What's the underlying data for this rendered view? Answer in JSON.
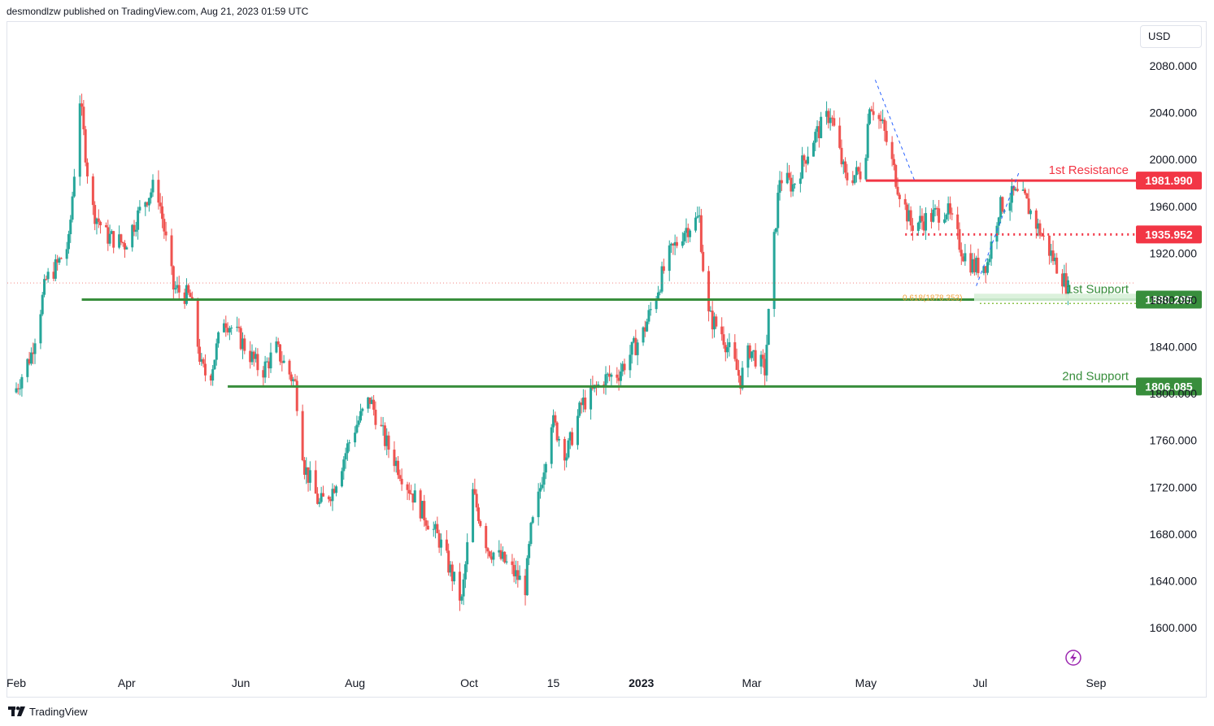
{
  "header": {
    "publisher": "desmondlzw published on TradingView.com, Aug 21, 2023 01:59 UTC"
  },
  "currency": "USD",
  "brand": {
    "name": "TradingView"
  },
  "colors": {
    "up": "#26a69a",
    "down": "#ef5350",
    "resistance": "#f23645",
    "support": "#388e3c",
    "fib": "#f2a33a",
    "trend": "#2962ff",
    "accent": "#9c27b0"
  },
  "chart_data": {
    "type": "candlestick",
    "instrument_currency": "USD",
    "y_axis": {
      "ticks": [
        "1600.000",
        "1640.000",
        "1680.000",
        "1720.000",
        "1760.000",
        "1800.000",
        "1840.000",
        "1880.000",
        "1920.000",
        "1960.000",
        "2000.000",
        "2040.000",
        "2080.000"
      ],
      "ylim": [
        1578,
        2098
      ]
    },
    "x_axis": {
      "ticks": [
        {
          "label": "Feb",
          "date": "2022-02-01"
        },
        {
          "label": "Apr",
          "date": "2022-04-01"
        },
        {
          "label": "Jun",
          "date": "2022-06-01"
        },
        {
          "label": "Aug",
          "date": "2022-08-01"
        },
        {
          "label": "Oct",
          "date": "2022-10-01"
        },
        {
          "label": "15",
          "date": "2022-11-15"
        },
        {
          "label": "2023",
          "date": "2023-01-01",
          "bold": true
        },
        {
          "label": "Mar",
          "date": "2023-03-01"
        },
        {
          "label": "May",
          "date": "2023-05-01"
        },
        {
          "label": "Jul",
          "date": "2023-07-01"
        },
        {
          "label": "Sep",
          "date": "2023-09-01"
        }
      ]
    },
    "levels": [
      {
        "name": "1st Resistance",
        "value": 1981.99,
        "label": "1981.990",
        "style": "solid",
        "color": "#f23645",
        "start_date": "2023-05-01"
      },
      {
        "name": "",
        "value": 1935.952,
        "label": "1935.952",
        "style": "dotted",
        "color": "#f23645",
        "start_date": "2023-05-22"
      },
      {
        "name": "1st Support",
        "value": 1880.295,
        "label": "1880.295",
        "style": "solid",
        "color": "#388e3c",
        "start_date": "2022-03-08"
      },
      {
        "name": "2nd Support",
        "value": 1806.085,
        "label": "1806.085",
        "style": "solid",
        "color": "#388e3c",
        "start_date": "2022-05-25"
      }
    ],
    "fib": {
      "label": "0.618(1878.353)",
      "value": 1878.353
    },
    "last_price": 1889.5,
    "series": [
      {
        "date": "2022-02-01",
        "close": 1801
      },
      {
        "date": "2022-02-10",
        "close": 1834
      },
      {
        "date": "2022-02-18",
        "close": 1897
      },
      {
        "date": "2022-02-24",
        "close": 1910
      },
      {
        "date": "2022-03-02",
        "close": 1928
      },
      {
        "date": "2022-03-08",
        "close": 2052
      },
      {
        "date": "2022-03-14",
        "close": 1960
      },
      {
        "date": "2022-03-22",
        "close": 1935
      },
      {
        "date": "2022-04-01",
        "close": 1928
      },
      {
        "date": "2022-04-12",
        "close": 1966
      },
      {
        "date": "2022-04-18",
        "close": 1980
      },
      {
        "date": "2022-04-27",
        "close": 1890
      },
      {
        "date": "2022-05-06",
        "close": 1882
      },
      {
        "date": "2022-05-12",
        "close": 1822
      },
      {
        "date": "2022-05-16",
        "close": 1812
      },
      {
        "date": "2022-05-24",
        "close": 1865
      },
      {
        "date": "2022-06-01",
        "close": 1848
      },
      {
        "date": "2022-06-13",
        "close": 1818
      },
      {
        "date": "2022-06-21",
        "close": 1838
      },
      {
        "date": "2022-07-01",
        "close": 1808
      },
      {
        "date": "2022-07-06",
        "close": 1738
      },
      {
        "date": "2022-07-14",
        "close": 1705
      },
      {
        "date": "2022-07-21",
        "close": 1718
      },
      {
        "date": "2022-08-01",
        "close": 1768
      },
      {
        "date": "2022-08-10",
        "close": 1795
      },
      {
        "date": "2022-08-18",
        "close": 1760
      },
      {
        "date": "2022-08-29",
        "close": 1725
      },
      {
        "date": "2022-09-06",
        "close": 1702
      },
      {
        "date": "2022-09-16",
        "close": 1675
      },
      {
        "date": "2022-09-28",
        "close": 1622
      },
      {
        "date": "2022-10-04",
        "close": 1715
      },
      {
        "date": "2022-10-12",
        "close": 1668
      },
      {
        "date": "2022-10-21",
        "close": 1656
      },
      {
        "date": "2022-11-01",
        "close": 1635
      },
      {
        "date": "2022-11-04",
        "close": 1682
      },
      {
        "date": "2022-11-08",
        "close": 1710
      },
      {
        "date": "2022-11-15",
        "close": 1778
      },
      {
        "date": "2022-11-23",
        "close": 1748
      },
      {
        "date": "2022-12-01",
        "close": 1790
      },
      {
        "date": "2022-12-13",
        "close": 1812
      },
      {
        "date": "2022-12-21",
        "close": 1818
      },
      {
        "date": "2023-01-03",
        "close": 1852
      },
      {
        "date": "2023-01-16",
        "close": 1915
      },
      {
        "date": "2023-01-25",
        "close": 1940
      },
      {
        "date": "2023-02-02",
        "close": 1950
      },
      {
        "date": "2023-02-06",
        "close": 1868
      },
      {
        "date": "2023-02-14",
        "close": 1852
      },
      {
        "date": "2023-02-24",
        "close": 1812
      },
      {
        "date": "2023-03-01",
        "close": 1838
      },
      {
        "date": "2023-03-09",
        "close": 1820
      },
      {
        "date": "2023-03-13",
        "close": 1912
      },
      {
        "date": "2023-03-17",
        "close": 1985
      },
      {
        "date": "2023-03-24",
        "close": 1978
      },
      {
        "date": "2023-04-04",
        "close": 2018
      },
      {
        "date": "2023-04-13",
        "close": 2040
      },
      {
        "date": "2023-04-21",
        "close": 1984
      },
      {
        "date": "2023-05-01",
        "close": 1990
      },
      {
        "date": "2023-05-04",
        "close": 2050
      },
      {
        "date": "2023-05-11",
        "close": 2028
      },
      {
        "date": "2023-05-19",
        "close": 1978
      },
      {
        "date": "2023-05-26",
        "close": 1944
      },
      {
        "date": "2023-06-02",
        "close": 1948
      },
      {
        "date": "2023-06-14",
        "close": 1958
      },
      {
        "date": "2023-06-23",
        "close": 1920
      },
      {
        "date": "2023-06-29",
        "close": 1908
      },
      {
        "date": "2023-07-06",
        "close": 1912
      },
      {
        "date": "2023-07-12",
        "close": 1958
      },
      {
        "date": "2023-07-20",
        "close": 1970
      },
      {
        "date": "2023-07-26",
        "close": 1965
      },
      {
        "date": "2023-08-01",
        "close": 1945
      },
      {
        "date": "2023-08-08",
        "close": 1922
      },
      {
        "date": "2023-08-15",
        "close": 1900
      },
      {
        "date": "2023-08-18",
        "close": 1889
      }
    ]
  }
}
